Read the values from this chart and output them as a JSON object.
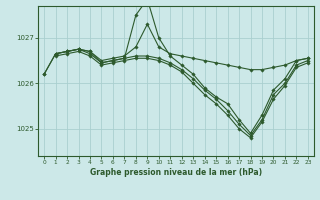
{
  "title": "Graphe pression niveau de la mer (hPa)",
  "bg_color": "#cce8e8",
  "grid_color": "#aacfcf",
  "line_color": "#2d5a2d",
  "marker_color": "#2d5a2d",
  "xlim": [
    -0.5,
    23.5
  ],
  "ylim": [
    1024.4,
    1027.7
  ],
  "yticks": [
    1025,
    1026,
    1027
  ],
  "xticks": [
    0,
    1,
    2,
    3,
    4,
    5,
    6,
    7,
    8,
    9,
    10,
    11,
    12,
    13,
    14,
    15,
    16,
    17,
    18,
    19,
    20,
    21,
    22,
    23
  ],
  "lines": [
    {
      "x": [
        0,
        1,
        2,
        3,
        4,
        5,
        6,
        7,
        8,
        9,
        10,
        11,
        12,
        13,
        14,
        15,
        16,
        17,
        18,
        19,
        20,
        21,
        22,
        23
      ],
      "y": [
        1026.2,
        1026.65,
        1026.7,
        1026.75,
        1026.7,
        1026.5,
        1026.55,
        1026.6,
        1026.8,
        1027.3,
        1026.8,
        1026.65,
        1026.6,
        1026.55,
        1026.5,
        1026.45,
        1026.4,
        1026.35,
        1026.3,
        1026.3,
        1026.35,
        1026.4,
        1026.5,
        1026.55
      ]
    },
    {
      "x": [
        0,
        1,
        2,
        3,
        4,
        5,
        6,
        7,
        8,
        9,
        10,
        11,
        12,
        13,
        14,
        15,
        16,
        17,
        18,
        19,
        20,
        21,
        22,
        23
      ],
      "y": [
        1026.2,
        1026.65,
        1026.7,
        1026.75,
        1026.7,
        1026.45,
        1026.5,
        1026.55,
        1027.5,
        1027.85,
        1027.0,
        1026.6,
        1026.4,
        1026.2,
        1025.9,
        1025.7,
        1025.55,
        1025.2,
        1024.9,
        1025.3,
        1025.85,
        1026.1,
        1026.5,
        1026.55
      ]
    },
    {
      "x": [
        1,
        2,
        3,
        4,
        5,
        6,
        7,
        8,
        9,
        10,
        11,
        12,
        13,
        14,
        15,
        16,
        17,
        18,
        19,
        20,
        21,
        22,
        23
      ],
      "y": [
        1026.65,
        1026.7,
        1026.75,
        1026.65,
        1026.45,
        1026.5,
        1026.55,
        1026.6,
        1026.6,
        1026.55,
        1026.45,
        1026.3,
        1026.1,
        1025.85,
        1025.65,
        1025.4,
        1025.1,
        1024.85,
        1025.2,
        1025.75,
        1026.0,
        1026.4,
        1026.5
      ]
    },
    {
      "x": [
        1,
        2,
        3,
        4,
        5,
        6,
        7,
        8,
        9,
        10,
        11,
        12,
        13,
        14,
        15,
        16,
        17,
        18,
        19,
        20,
        21,
        22,
        23
      ],
      "y": [
        1026.6,
        1026.65,
        1026.7,
        1026.6,
        1026.4,
        1026.45,
        1026.5,
        1026.55,
        1026.55,
        1026.5,
        1026.4,
        1026.25,
        1026.0,
        1025.75,
        1025.55,
        1025.3,
        1025.0,
        1024.8,
        1025.15,
        1025.65,
        1025.95,
        1026.35,
        1026.45
      ]
    }
  ]
}
